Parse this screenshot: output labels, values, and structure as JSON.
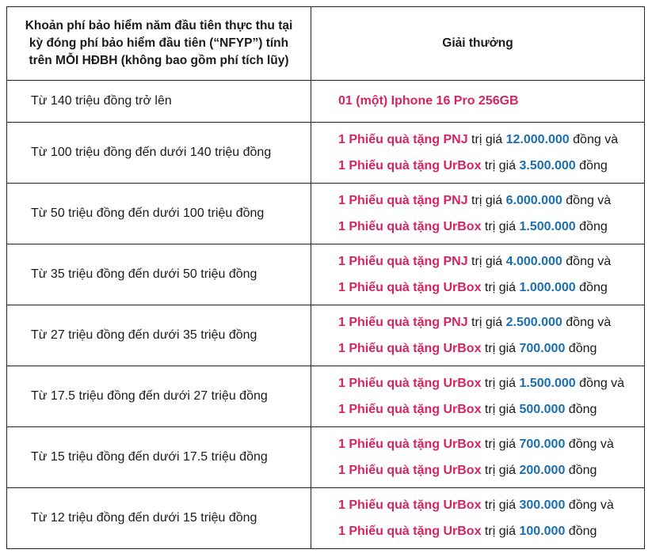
{
  "header": {
    "col1_line1": "Khoản phí bảo hiểm năm đầu tiên thực thu tại",
    "col1_line2": "kỳ đóng phí bảo hiểm đầu tiên (“NFYP”) tính",
    "col1_line3": "trên MỖI HĐBH (không bao gồm phí tích lũy)",
    "col2": "Giải thưởng"
  },
  "rows": [
    {
      "range": "Từ 140 triệu đồng trở lên",
      "prize_single": "01 (một) Iphone 16 Pro 256GB"
    },
    {
      "range": "Từ 100 triệu đồng đến dưới 140 triệu đồng",
      "line1": {
        "voucher": "1 Phiếu quà tặng PNJ",
        "value_label": "trị giá",
        "amount": "12.000.000",
        "suffix": "đồng và"
      },
      "line2": {
        "voucher": "1 Phiếu quà tặng UrBox",
        "value_label": "trị giá",
        "amount": "3.500.000",
        "suffix": "đồng"
      }
    },
    {
      "range": "Từ 50 triệu đồng đến dưới 100 triệu đồng",
      "line1": {
        "voucher": "1 Phiếu quà tặng PNJ",
        "value_label": "trị giá",
        "amount": "6.000.000",
        "suffix": "đồng và"
      },
      "line2": {
        "voucher": "1 Phiếu quà tặng UrBox",
        "value_label": "trị giá",
        "amount": "1.500.000",
        "suffix": "đồng"
      }
    },
    {
      "range": "Từ 35 triệu đồng đến dưới 50 triệu đồng",
      "line1": {
        "voucher": "1 Phiếu quà tặng PNJ",
        "value_label": "trị giá",
        "amount": "4.000.000",
        "suffix": "đồng và"
      },
      "line2": {
        "voucher": "1 Phiếu quà tặng UrBox",
        "value_label": "trị giá",
        "amount": "1.000.000",
        "suffix": "đồng"
      }
    },
    {
      "range": "Từ 27 triệu đồng đến dưới 35 triệu đồng",
      "line1": {
        "voucher": "1 Phiếu quà tặng PNJ",
        "value_label": "trị giá",
        "amount": "2.500.000",
        "suffix": "đồng và"
      },
      "line2": {
        "voucher": "1 Phiếu quà tặng UrBox",
        "value_label": "trị giá",
        "amount": "700.000",
        "suffix": "đồng"
      }
    },
    {
      "range": "Từ 17.5 triệu đồng đến dưới 27 triệu đồng",
      "line1": {
        "voucher": "1 Phiếu quà tặng UrBox",
        "value_label": "trị giá",
        "amount": "1.500.000",
        "suffix": "đồng và"
      },
      "line2": {
        "voucher": "1 Phiếu quà tặng UrBox",
        "value_label": "trị giá",
        "amount": "500.000",
        "suffix": "đồng"
      }
    },
    {
      "range": "Từ 15 triệu đồng đến dưới 17.5 triệu đồng",
      "line1": {
        "voucher": "1 Phiếu quà tặng UrBox",
        "value_label": "trị giá",
        "amount": "700.000",
        "suffix": "đồng và"
      },
      "line2": {
        "voucher": "1 Phiếu quà tặng UrBox",
        "value_label": "trị giá",
        "amount": "200.000",
        "suffix": "đồng"
      }
    },
    {
      "range": "Từ 12 triệu đồng đến dưới 15 triệu đồng",
      "line1": {
        "voucher": "1 Phiếu quà tặng UrBox",
        "value_label": "trị giá",
        "amount": "300.000",
        "suffix": "đồng và"
      },
      "line2": {
        "voucher": "1 Phiếu quà tặng UrBox",
        "value_label": "trị giá",
        "amount": "100.000",
        "suffix": "đồng"
      }
    }
  ],
  "colors": {
    "voucher_text": "#d6245f",
    "amount_text": "#1a6fb3",
    "border": "#222222"
  }
}
